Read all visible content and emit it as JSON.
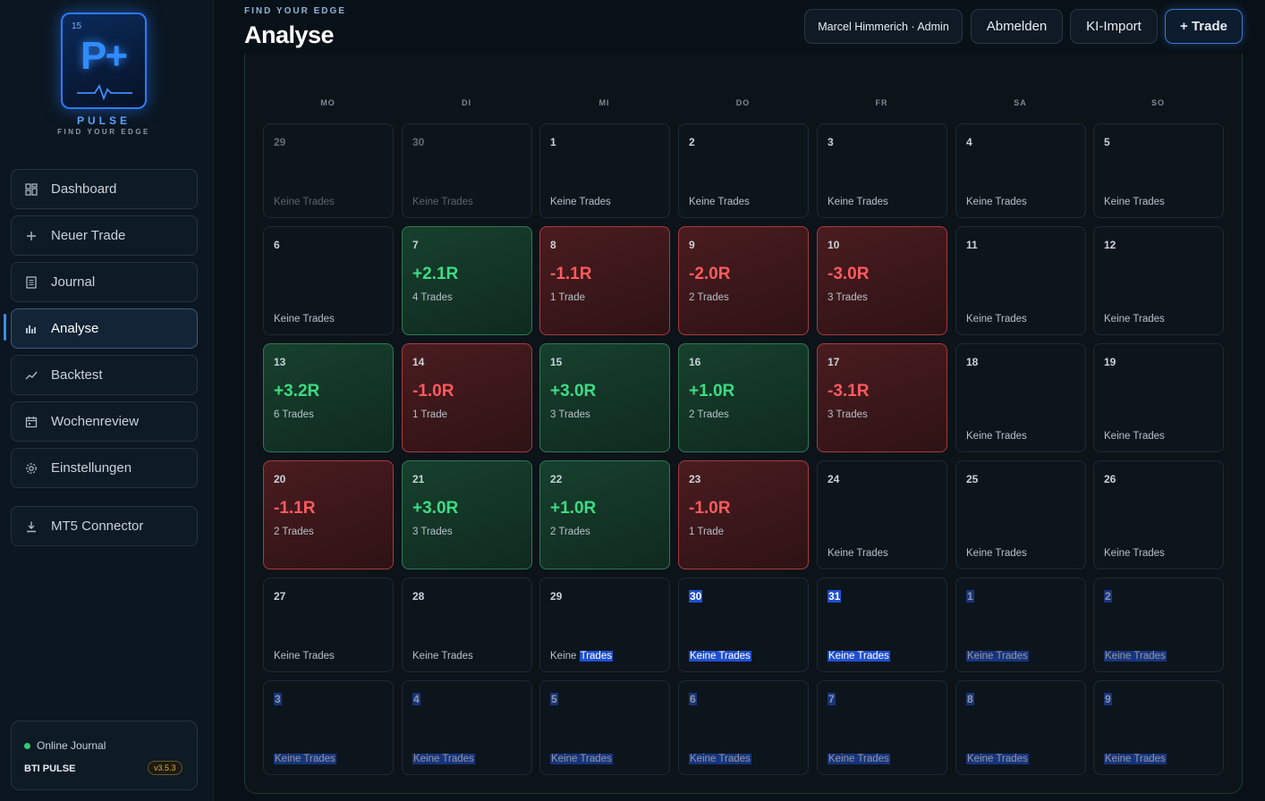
{
  "brand": {
    "logo_number": "15",
    "logo_letters": "P+",
    "name": "PULSE",
    "tagline": "FIND YOUR EDGE"
  },
  "nav": [
    {
      "label": "Dashboard",
      "icon": "grid-icon"
    },
    {
      "label": "Neuer Trade",
      "icon": "plus-icon"
    },
    {
      "label": "Journal",
      "icon": "document-icon"
    },
    {
      "label": "Analyse",
      "icon": "bar-chart-icon",
      "active": true
    },
    {
      "label": "Backtest",
      "icon": "trend-icon"
    },
    {
      "label": "Wochenreview",
      "icon": "calendar-icon"
    },
    {
      "label": "Einstellungen",
      "icon": "gear-icon"
    }
  ],
  "connector": {
    "label": "MT5 Connector",
    "icon": "download-icon"
  },
  "status": {
    "label": "Online Journal",
    "app": "BTI PULSE",
    "version": "v3.5.3"
  },
  "header": {
    "kicker": "FIND YOUR EDGE",
    "title": "Analyse",
    "user": "Marcel Himmerich · Admin",
    "logout": "Abmelden",
    "import": "KI-Import",
    "add_trade": "+ Trade"
  },
  "calendar": {
    "weekdays": [
      "MO",
      "DI",
      "MI",
      "DO",
      "FR",
      "SA",
      "SO"
    ],
    "empty_label": "Keine Trades",
    "weeks": [
      [
        {
          "day": "29",
          "dim": true
        },
        {
          "day": "30",
          "dim": true
        },
        {
          "day": "1"
        },
        {
          "day": "2"
        },
        {
          "day": "3"
        },
        {
          "day": "4"
        },
        {
          "day": "5"
        }
      ],
      [
        {
          "day": "6"
        },
        {
          "day": "7",
          "r": "+2.1R",
          "trades": "4 Trades"
        },
        {
          "day": "8",
          "r": "-1.1R",
          "trades": "1 Trade"
        },
        {
          "day": "9",
          "r": "-2.0R",
          "trades": "2 Trades"
        },
        {
          "day": "10",
          "r": "-3.0R",
          "trades": "3 Trades"
        },
        {
          "day": "11"
        },
        {
          "day": "12"
        }
      ],
      [
        {
          "day": "13",
          "r": "+3.2R",
          "trades": "6 Trades"
        },
        {
          "day": "14",
          "r": "-1.0R",
          "trades": "1 Trade"
        },
        {
          "day": "15",
          "r": "+3.0R",
          "trades": "3 Trades"
        },
        {
          "day": "16",
          "r": "+1.0R",
          "trades": "2 Trades"
        },
        {
          "day": "17",
          "r": "-3.1R",
          "trades": "3 Trades"
        },
        {
          "day": "18"
        },
        {
          "day": "19"
        }
      ],
      [
        {
          "day": "20",
          "r": "-1.1R",
          "trades": "2 Trades"
        },
        {
          "day": "21",
          "r": "+3.0R",
          "trades": "3 Trades"
        },
        {
          "day": "22",
          "r": "+1.0R",
          "trades": "2 Trades"
        },
        {
          "day": "23",
          "r": "-1.0R",
          "trades": "1 Trade"
        },
        {
          "day": "24"
        },
        {
          "day": "25"
        },
        {
          "day": "26"
        }
      ],
      [
        {
          "day": "27"
        },
        {
          "day": "28"
        },
        {
          "day": "29"
        },
        {
          "day": "30"
        },
        {
          "day": "31"
        },
        {
          "day": "1",
          "dim": true
        },
        {
          "day": "2",
          "dim": true
        }
      ],
      [
        {
          "day": "3",
          "dim": true
        },
        {
          "day": "4",
          "dim": true
        },
        {
          "day": "5",
          "dim": true
        },
        {
          "day": "6",
          "dim": true
        },
        {
          "day": "7",
          "dim": true
        },
        {
          "day": "8",
          "dim": true
        },
        {
          "day": "9",
          "dim": true
        }
      ]
    ]
  }
}
